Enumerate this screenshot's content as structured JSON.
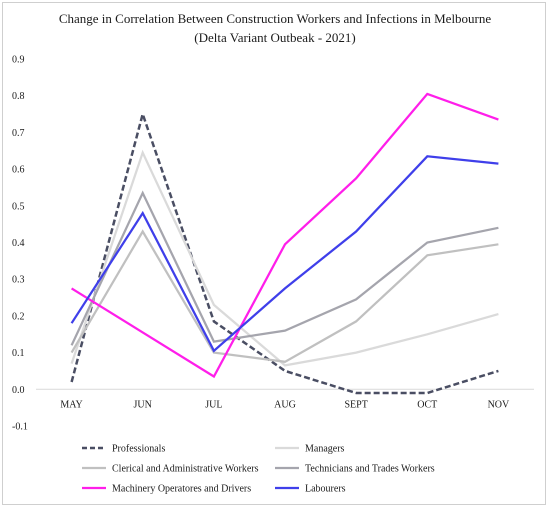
{
  "chart_data": {
    "type": "line",
    "title_lines": [
      "Change in Correlation Between Construction Workers and Infections in Melbourne",
      "(Delta Variant Outbeak - 2021)"
    ],
    "categories": [
      "MAY",
      "JUN",
      "JUL",
      "AUG",
      "SEPT",
      "OCT",
      "NOV"
    ],
    "ylim": [
      -0.1,
      0.9
    ],
    "yticks": [
      "-0.1",
      "0.0",
      "0.1",
      "0.2",
      "0.3",
      "0.4",
      "0.5",
      "0.6",
      "0.7",
      "0.8",
      "0.9"
    ],
    "xlabel": "",
    "ylabel": "",
    "grid": false,
    "legend_position": "bottom",
    "series": [
      {
        "name": "Professionals",
        "color": "#4a4e63",
        "dashed": true,
        "values": [
          0.02,
          0.75,
          0.185,
          0.05,
          -0.01,
          -0.01,
          0.05
        ]
      },
      {
        "name": "Managers",
        "color": "#dadada",
        "dashed": false,
        "values": [
          0.07,
          0.645,
          0.23,
          0.065,
          0.1,
          0.15,
          0.205
        ]
      },
      {
        "name": "Clerical and Administrative Workers",
        "color": "#c0c0c0",
        "dashed": false,
        "values": [
          0.1,
          0.43,
          0.1,
          0.075,
          0.185,
          0.365,
          0.395
        ]
      },
      {
        "name": "Technicians and Trades Workers",
        "color": "#a5a5ad",
        "dashed": false,
        "values": [
          0.12,
          0.535,
          0.13,
          0.16,
          0.245,
          0.4,
          0.44
        ]
      },
      {
        "name": "Machinery Operatores and Drivers",
        "color": "#ff1eea",
        "dashed": false,
        "values": [
          0.275,
          0.155,
          0.035,
          0.395,
          0.575,
          0.805,
          0.735
        ]
      },
      {
        "name": "Labourers",
        "color": "#3f3fea",
        "dashed": false,
        "values": [
          0.18,
          0.48,
          0.105,
          0.275,
          0.43,
          0.635,
          0.615
        ]
      }
    ]
  }
}
